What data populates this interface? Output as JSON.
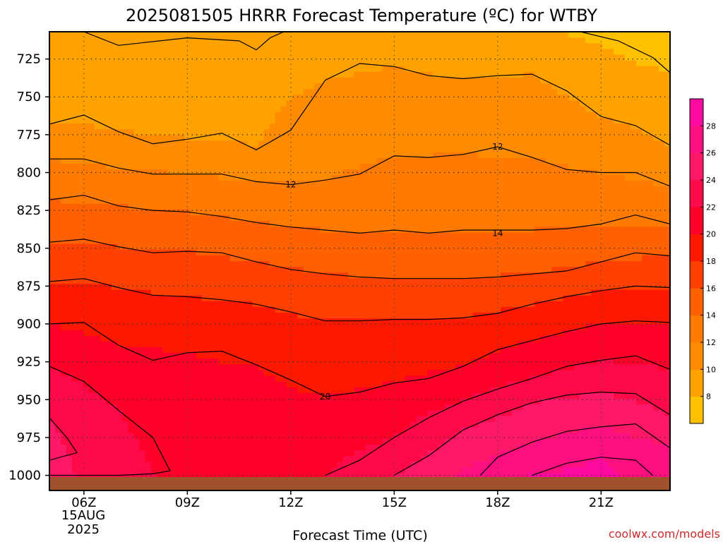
{
  "chart_data": {
    "type": "contour",
    "title": "2025081505 HRRR Forecast Temperature (ºC) for WTBY",
    "xlabel": "Forecast Time (UTC)",
    "ylabel": "",
    "credit": "coolwx.com/models",
    "x_ticks": [
      "06Z",
      "09Z",
      "12Z",
      "15Z",
      "18Z",
      "21Z"
    ],
    "x_tick_hours": [
      6,
      9,
      12,
      15,
      18,
      21
    ],
    "date_label": [
      "15AUG",
      "2025"
    ],
    "x_range_hours": [
      5,
      23
    ],
    "y_ticks": [
      725,
      750,
      775,
      800,
      825,
      850,
      875,
      900,
      925,
      950,
      975,
      1000
    ],
    "y_range_hPa": [
      707,
      1010
    ],
    "y_scale": "pressure (inverted)",
    "grid": "dotted",
    "colorbar": {
      "levels": [
        6,
        8,
        10,
        12,
        14,
        16,
        18,
        20,
        22,
        24,
        26,
        28,
        30
      ],
      "tick_labels": [
        "8",
        "10",
        "12",
        "14",
        "16",
        "18",
        "20",
        "22",
        "24",
        "26",
        "28"
      ],
      "colors": [
        "#ffc000",
        "#ffa200",
        "#ff8c00",
        "#ff7a00",
        "#ff6000",
        "#ff4000",
        "#ff1800",
        "#ff0028",
        "#ff0a48",
        "#ff1868",
        "#ff0f80",
        "#ff0aa0"
      ]
    },
    "contour_labels": [
      {
        "text": "12",
        "hour": 12.0,
        "hPa": 808
      },
      {
        "text": "12",
        "hour": 18.0,
        "hPa": 783
      },
      {
        "text": "14",
        "hour": 18.0,
        "hPa": 840
      },
      {
        "text": "20",
        "hour": 13.0,
        "hPa": 948
      }
    ],
    "isotherms": [
      {
        "value": 8,
        "points": [
          [
            6.0,
            707
          ],
          [
            7.0,
            716
          ],
          [
            9.0,
            711
          ],
          [
            10.5,
            713
          ],
          [
            11.0,
            719
          ],
          [
            11.4,
            711
          ],
          [
            11.8,
            707
          ]
        ]
      },
      {
        "value": 8,
        "points": [
          [
            20.4,
            707
          ],
          [
            21.5,
            713
          ],
          [
            22.5,
            724
          ],
          [
            23.0,
            734
          ]
        ]
      },
      {
        "value": 10,
        "points": [
          [
            5.0,
            768
          ],
          [
            6.0,
            762
          ],
          [
            7.0,
            773
          ],
          [
            8.0,
            781
          ],
          [
            9.0,
            778
          ],
          [
            10.0,
            774
          ],
          [
            11.0,
            785
          ],
          [
            12.0,
            772
          ],
          [
            13.0,
            739
          ],
          [
            14.0,
            728
          ],
          [
            15.0,
            730
          ],
          [
            16.0,
            736
          ],
          [
            17.0,
            738
          ],
          [
            18.0,
            736
          ],
          [
            19.0,
            735
          ],
          [
            20.0,
            746
          ],
          [
            21.0,
            763
          ],
          [
            22.0,
            769
          ],
          [
            23.0,
            782
          ]
        ]
      },
      {
        "value": 12,
        "points": [
          [
            5.0,
            791
          ],
          [
            6.0,
            791
          ],
          [
            7.0,
            797
          ],
          [
            8.0,
            801
          ],
          [
            9.0,
            801
          ],
          [
            10.0,
            801
          ],
          [
            11.0,
            806
          ],
          [
            12.0,
            808
          ],
          [
            13.0,
            805
          ],
          [
            14.0,
            801
          ],
          [
            15.0,
            789
          ],
          [
            16.0,
            790
          ],
          [
            17.0,
            788
          ],
          [
            18.0,
            783
          ],
          [
            19.0,
            790
          ],
          [
            20.0,
            798
          ],
          [
            21.0,
            800
          ],
          [
            22.0,
            800
          ],
          [
            23.0,
            809
          ]
        ]
      },
      {
        "value": 14,
        "points": [
          [
            5.0,
            818
          ],
          [
            6.0,
            815
          ],
          [
            7.0,
            822
          ],
          [
            8.0,
            825
          ],
          [
            9.0,
            826
          ],
          [
            10.0,
            829
          ],
          [
            11.0,
            833
          ],
          [
            12.0,
            836
          ],
          [
            13.0,
            838
          ],
          [
            14.0,
            840
          ],
          [
            15.0,
            838
          ],
          [
            16.0,
            840
          ],
          [
            17.0,
            838
          ],
          [
            18.0,
            838
          ],
          [
            19.0,
            838
          ],
          [
            20.0,
            837
          ],
          [
            21.0,
            834
          ],
          [
            22.0,
            828
          ],
          [
            23.0,
            834
          ]
        ]
      },
      {
        "value": 16,
        "points": [
          [
            5.0,
            846
          ],
          [
            6.0,
            844
          ],
          [
            7.0,
            849
          ],
          [
            8.0,
            853
          ],
          [
            9.0,
            852
          ],
          [
            10.0,
            853
          ],
          [
            11.0,
            859
          ],
          [
            12.0,
            864
          ],
          [
            13.0,
            867
          ],
          [
            14.0,
            869
          ],
          [
            15.0,
            870
          ],
          [
            16.0,
            870
          ],
          [
            17.0,
            870
          ],
          [
            18.0,
            869
          ],
          [
            19.0,
            867
          ],
          [
            20.0,
            865
          ],
          [
            21.0,
            859
          ],
          [
            22.0,
            853
          ],
          [
            23.0,
            855
          ]
        ]
      },
      {
        "value": 18,
        "points": [
          [
            5.0,
            872
          ],
          [
            6.0,
            870
          ],
          [
            7.0,
            876
          ],
          [
            8.0,
            881
          ],
          [
            9.0,
            882
          ],
          [
            10.0,
            884
          ],
          [
            11.0,
            887
          ],
          [
            12.0,
            892
          ],
          [
            13.0,
            898
          ],
          [
            14.0,
            898
          ],
          [
            15.0,
            897
          ],
          [
            16.0,
            897
          ],
          [
            17.0,
            896
          ],
          [
            18.0,
            893
          ],
          [
            19.0,
            887
          ],
          [
            20.0,
            882
          ],
          [
            21.0,
            878
          ],
          [
            22.0,
            875
          ],
          [
            23.0,
            876
          ]
        ]
      },
      {
        "value": 20,
        "points": [
          [
            5.0,
            900
          ],
          [
            6.0,
            899
          ],
          [
            7.0,
            914
          ],
          [
            8.0,
            924
          ],
          [
            9.0,
            919
          ],
          [
            10.0,
            918
          ],
          [
            11.0,
            927
          ],
          [
            12.0,
            937
          ],
          [
            13.0,
            948
          ],
          [
            14.0,
            945
          ],
          [
            15.0,
            939
          ],
          [
            16.0,
            936
          ],
          [
            17.0,
            928
          ],
          [
            18.0,
            917
          ],
          [
            19.0,
            911
          ],
          [
            20.0,
            905
          ],
          [
            21.0,
            900
          ],
          [
            22.0,
            898
          ],
          [
            23.0,
            899
          ]
        ]
      },
      {
        "value": 22,
        "points": [
          [
            5.0,
            928
          ],
          [
            6.0,
            938
          ],
          [
            7.0,
            957
          ],
          [
            8.0,
            975
          ],
          [
            8.5,
            997
          ],
          [
            8.0,
            999
          ],
          [
            7.0,
            1000
          ],
          [
            6.0,
            1000
          ],
          [
            5.0,
            1000
          ]
        ]
      },
      {
        "value": 22,
        "points": [
          [
            13.0,
            1000
          ],
          [
            14.0,
            990
          ],
          [
            15.0,
            975
          ],
          [
            16.0,
            962
          ],
          [
            17.0,
            951
          ],
          [
            18.0,
            943
          ],
          [
            19.0,
            936
          ],
          [
            20.0,
            928
          ],
          [
            21.0,
            924
          ],
          [
            22.0,
            921
          ],
          [
            23.0,
            930
          ]
        ]
      },
      {
        "value": 24,
        "points": [
          [
            5.0,
            962
          ],
          [
            5.5,
            975
          ],
          [
            5.8,
            985
          ],
          [
            5.0,
            990
          ]
        ]
      },
      {
        "value": 24,
        "points": [
          [
            15.0,
            1000
          ],
          [
            16.0,
            987
          ],
          [
            17.0,
            970
          ],
          [
            18.0,
            960
          ],
          [
            19.0,
            952
          ],
          [
            20.0,
            947
          ],
          [
            21.0,
            945
          ],
          [
            22.0,
            946
          ],
          [
            23.0,
            960
          ]
        ]
      },
      {
        "value": 26,
        "points": [
          [
            17.5,
            1000
          ],
          [
            18.0,
            988
          ],
          [
            19.0,
            978
          ],
          [
            20.0,
            971
          ],
          [
            21.0,
            968
          ],
          [
            22.0,
            966
          ],
          [
            23.0,
            982
          ]
        ]
      },
      {
        "value": 28,
        "points": [
          [
            19.0,
            1000
          ],
          [
            20.0,
            992
          ],
          [
            21.0,
            988
          ],
          [
            22.0,
            990
          ],
          [
            22.5,
            1000
          ]
        ]
      }
    ],
    "temperature_columns": {
      "hours": [
        5,
        7,
        9,
        11,
        13,
        15,
        17,
        19,
        21,
        23
      ],
      "profiles": [
        [
          [
            707,
            8.5
          ],
          [
            768,
            10
          ],
          [
            791,
            12
          ],
          [
            818,
            14
          ],
          [
            846,
            16
          ],
          [
            872,
            18
          ],
          [
            900,
            20
          ],
          [
            928,
            22
          ],
          [
            962,
            24
          ],
          [
            1010,
            25
          ]
        ],
        [
          [
            707,
            8.5
          ],
          [
            773,
            10
          ],
          [
            797,
            12
          ],
          [
            822,
            14
          ],
          [
            849,
            16
          ],
          [
            876,
            18
          ],
          [
            914,
            20
          ],
          [
            957,
            22
          ],
          [
            1010,
            23
          ]
        ],
        [
          [
            707,
            9
          ],
          [
            778,
            10
          ],
          [
            801,
            12
          ],
          [
            826,
            14
          ],
          [
            852,
            16
          ],
          [
            882,
            18
          ],
          [
            919,
            20
          ],
          [
            1010,
            21.5
          ]
        ],
        [
          [
            707,
            9
          ],
          [
            785,
            10
          ],
          [
            806,
            12
          ],
          [
            833,
            14
          ],
          [
            859,
            16
          ],
          [
            887,
            18
          ],
          [
            927,
            20
          ],
          [
            1010,
            21.5
          ]
        ],
        [
          [
            707,
            9
          ],
          [
            739,
            10
          ],
          [
            805,
            12
          ],
          [
            838,
            14
          ],
          [
            867,
            16
          ],
          [
            898,
            18
          ],
          [
            948,
            20
          ],
          [
            1000,
            22
          ],
          [
            1010,
            22.3
          ]
        ],
        [
          [
            707,
            8.6
          ],
          [
            730,
            10
          ],
          [
            789,
            12
          ],
          [
            838,
            14
          ],
          [
            870,
            16
          ],
          [
            897,
            18
          ],
          [
            939,
            20
          ],
          [
            975,
            22
          ],
          [
            1000,
            24
          ],
          [
            1010,
            24.5
          ]
        ],
        [
          [
            707,
            8.4
          ],
          [
            738,
            10
          ],
          [
            788,
            12
          ],
          [
            838,
            14
          ],
          [
            870,
            16
          ],
          [
            896,
            18
          ],
          [
            928,
            20
          ],
          [
            951,
            22
          ],
          [
            970,
            24
          ],
          [
            996,
            26
          ],
          [
            1010,
            26.6
          ]
        ],
        [
          [
            707,
            8.2
          ],
          [
            735,
            10
          ],
          [
            790,
            12
          ],
          [
            838,
            14
          ],
          [
            867,
            16
          ],
          [
            887,
            18
          ],
          [
            911,
            20
          ],
          [
            936,
            22
          ],
          [
            952,
            24
          ],
          [
            978,
            26
          ],
          [
            1000,
            28
          ],
          [
            1010,
            28.3
          ]
        ],
        [
          [
            707,
            7.6
          ],
          [
            763,
            10
          ],
          [
            800,
            12
          ],
          [
            834,
            14
          ],
          [
            859,
            16
          ],
          [
            878,
            18
          ],
          [
            900,
            20
          ],
          [
            924,
            22
          ],
          [
            945,
            24
          ],
          [
            968,
            26
          ],
          [
            988,
            28
          ],
          [
            1010,
            29
          ]
        ],
        [
          [
            707,
            6.2
          ],
          [
            734,
            8
          ],
          [
            782,
            10
          ],
          [
            809,
            12
          ],
          [
            834,
            14
          ],
          [
            855,
            16
          ],
          [
            876,
            18
          ],
          [
            899,
            20
          ],
          [
            930,
            22
          ],
          [
            960,
            24
          ],
          [
            982,
            26
          ],
          [
            1010,
            27
          ]
        ]
      ]
    }
  }
}
